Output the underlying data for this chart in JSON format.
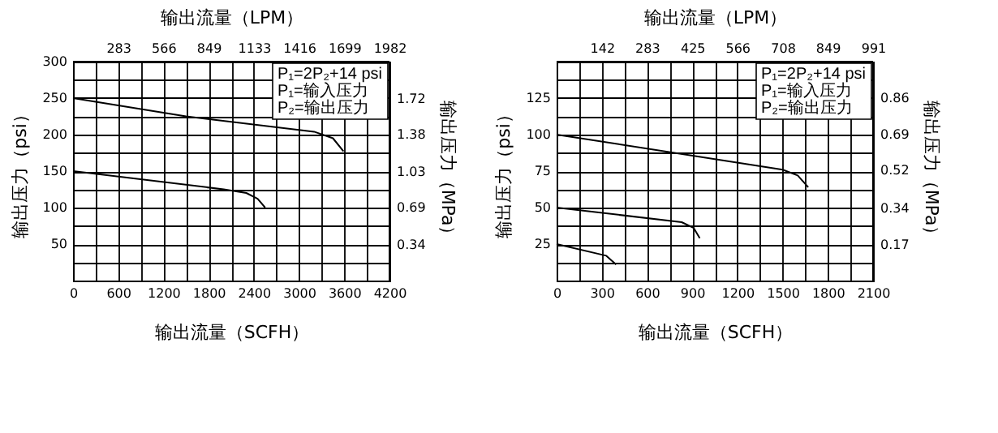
{
  "chart_data": [
    {
      "type": "line",
      "xlabel": "输出流量（SCFH）",
      "x2label": "输出流量（LPM）",
      "ylabel": "输出压力（psi）",
      "y2label": "输出压力（MPa）",
      "xlim": [
        0,
        4200
      ],
      "xticks": [
        0,
        {
          "value": 300,
          "label": null
        },
        600,
        {
          "value": 900,
          "label": null
        },
        1200,
        {
          "value": 1500,
          "label": null
        },
        1800,
        {
          "value": 2100,
          "label": null
        },
        2400,
        {
          "value": 2700,
          "label": null
        },
        3000,
        {
          "value": 3300,
          "label": null
        },
        3600,
        {
          "value": 3900,
          "label": null
        },
        4200
      ],
      "ylim": [
        0,
        300
      ],
      "yticks": [
        {
          "value": 0,
          "label": null
        },
        {
          "value": 25,
          "label": null
        },
        50,
        {
          "value": 75,
          "label": null
        },
        100,
        {
          "value": 125,
          "label": null
        },
        150,
        {
          "value": 175,
          "label": null
        },
        200,
        {
          "value": 225,
          "label": null
        },
        250,
        {
          "value": 275,
          "label": null
        },
        300
      ],
      "x2lim": [
        0,
        1982
      ],
      "x2ticks": [
        283,
        566,
        849,
        1133,
        1416,
        1699,
        1982
      ],
      "y2lim": [
        0,
        2.07
      ],
      "y2ticks": [
        0.34,
        0.69,
        1.03,
        1.38,
        1.72
      ],
      "grid": true,
      "annotations": [
        "P₁=2P₂+14 psi",
        "P₁=输入压力",
        "P₂=输出压力"
      ],
      "series": [
        {
          "color": "#000000",
          "x": [
            0,
            1500,
            3200,
            3450,
            3590
          ],
          "values": [
            250,
            225,
            204,
            195,
            177
          ]
        },
        {
          "color": "#000000",
          "x": [
            0,
            2000,
            2300,
            2450,
            2550
          ],
          "values": [
            150,
            125,
            120,
            112,
            100
          ]
        }
      ]
    },
    {
      "type": "line",
      "xlabel": "输出流量（SCFH）",
      "x2label": "输出流量（LPM）",
      "ylabel": "输出压力（psi）",
      "y2label": "输出压力（MPa）",
      "xlim": [
        0,
        2100
      ],
      "xticks": [
        0,
        {
          "value": 150,
          "label": null
        },
        300,
        {
          "value": 450,
          "label": null
        },
        600,
        {
          "value": 750,
          "label": null
        },
        900,
        {
          "value": 1050,
          "label": null
        },
        1200,
        {
          "value": 1350,
          "label": null
        },
        1500,
        {
          "value": 1650,
          "label": null
        },
        1800,
        {
          "value": 1950,
          "label": null
        },
        2100
      ],
      "ylim": [
        0,
        150
      ],
      "yticks": [
        {
          "value": 0,
          "label": null
        },
        {
          "value": 12.5,
          "label": null
        },
        25,
        {
          "value": 37.5,
          "label": null
        },
        50,
        {
          "value": 62.5,
          "label": null
        },
        75,
        {
          "value": 87.5,
          "label": null
        },
        100,
        {
          "value": 112.5,
          "label": null
        },
        125,
        {
          "value": 137.5,
          "label": null
        },
        {
          "value": 150,
          "label": null
        }
      ],
      "x2lim": [
        0,
        991
      ],
      "x2ticks": [
        142,
        283,
        425,
        566,
        708,
        849,
        991
      ],
      "y2lim": [
        0,
        1.034
      ],
      "y2ticks": [
        0.17,
        0.34,
        0.52,
        0.69,
        0.86
      ],
      "grid": true,
      "annotations": [
        "P₁=2P₂+14 psi",
        "P₁=输入压力",
        "P₂=输出压力"
      ],
      "series": [
        {
          "color": "#000000",
          "x": [
            0,
            1500,
            1600,
            1670
          ],
          "values": [
            100,
            76,
            72,
            64
          ]
        },
        {
          "color": "#000000",
          "x": [
            0,
            830,
            910,
            950
          ],
          "values": [
            50,
            40,
            36,
            29
          ]
        },
        {
          "color": "#000000",
          "x": [
            0,
            330,
            395
          ],
          "values": [
            25,
            17,
            11
          ]
        }
      ]
    }
  ]
}
